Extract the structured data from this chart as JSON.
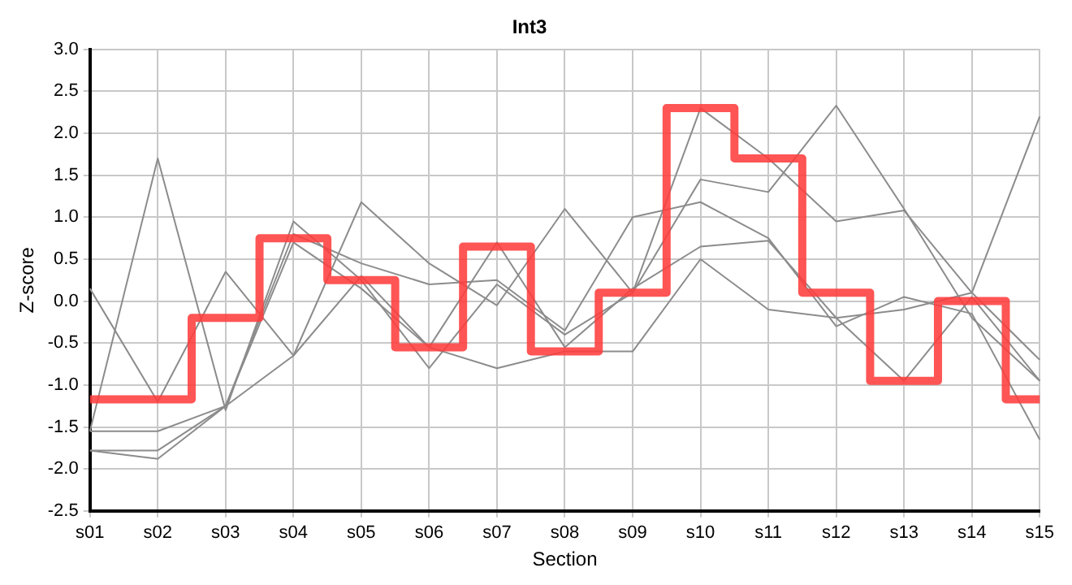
{
  "chart_data": {
    "type": "line",
    "title": "Int3",
    "xlabel": "Section",
    "ylabel": "Z-score",
    "categories": [
      "s01",
      "s02",
      "s03",
      "s04",
      "s05",
      "s06",
      "s07",
      "s08",
      "s09",
      "s10",
      "s11",
      "s12",
      "s13",
      "s14",
      "s15"
    ],
    "ylim": [
      -2.5,
      3.0
    ],
    "yticks": [
      -2.5,
      {
        "value": -2,
        "label": "-2.0"
      },
      -1.5,
      {
        "value": -1,
        "label": "-1.0"
      },
      -0.5,
      {
        "value": 0,
        "label": "0.0"
      },
      0.5,
      {
        "value": 1,
        "label": "1.0"
      },
      1.5,
      {
        "value": 2,
        "label": "2.0"
      },
      2.5,
      {
        "value": 3,
        "label": "3.0"
      }
    ],
    "grid": true,
    "legend": false,
    "marker": "none",
    "line_style": "solid",
    "series": [
      {
        "type": "line",
        "color": "#8c8c8c",
        "values": [
          0.15,
          -1.2,
          0.35,
          -0.65,
          1.18,
          0.45,
          -0.05,
          1.1,
          0.1,
          2.3,
          1.7,
          0.95,
          1.08,
          0.1,
          -0.7
        ]
      },
      {
        "type": "line",
        "color": "#8c8c8c",
        "values": [
          -1.55,
          1.7,
          -1.3,
          0.95,
          0.25,
          -0.8,
          0.2,
          -0.4,
          0.1,
          1.45,
          1.3,
          2.33,
          1.1,
          -0.2,
          -0.95
        ]
      },
      {
        "type": "line",
        "color": "#8c8c8c",
        "values": [
          -1.55,
          -1.55,
          -1.25,
          0.8,
          0.45,
          0.2,
          0.25,
          -0.35,
          1.0,
          1.18,
          0.75,
          -0.3,
          0.05,
          -0.15,
          -1.65
        ]
      },
      {
        "type": "line",
        "color": "#8c8c8c",
        "values": [
          -1.78,
          -1.78,
          -1.25,
          0.7,
          0.15,
          -0.55,
          0.7,
          -0.55,
          0.15,
          0.65,
          0.72,
          -0.2,
          -0.1,
          0.1,
          2.2
        ]
      },
      {
        "type": "line",
        "color": "#8c8c8c",
        "values": [
          -1.78,
          -1.88,
          -1.25,
          -0.65,
          0.3,
          -0.55,
          -0.8,
          -0.6,
          -0.6,
          0.5,
          -0.1,
          -0.2,
          -0.95,
          0.05,
          -0.95
        ]
      },
      {
        "type": "step",
        "color": "#ff3b3b",
        "values": [
          -1.17,
          -1.17,
          -0.2,
          0.75,
          0.25,
          -0.55,
          0.65,
          -0.6,
          0.1,
          2.3,
          1.7,
          0.1,
          -0.95,
          0.0,
          -1.17
        ]
      }
    ]
  }
}
